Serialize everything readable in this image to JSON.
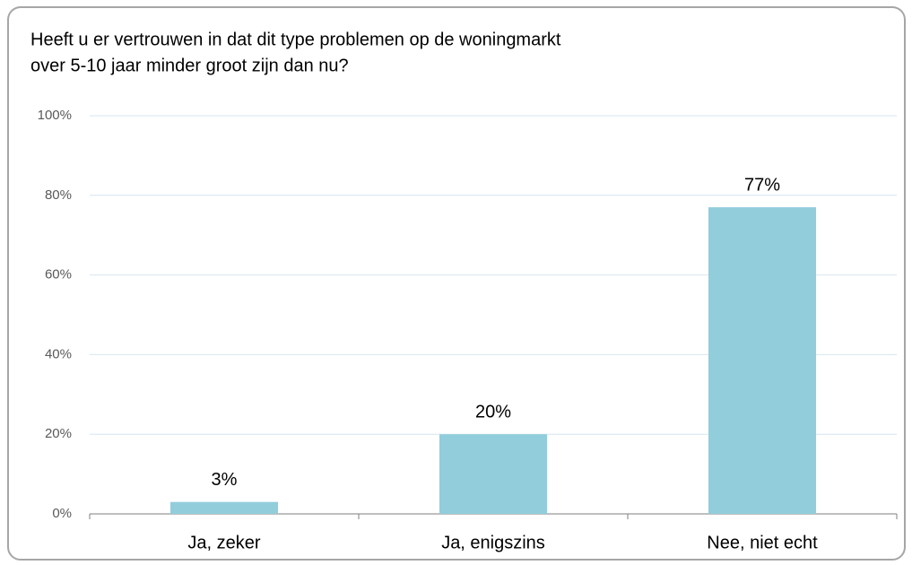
{
  "chart_data": {
    "type": "bar",
    "title": [
      "Heeft u er vertrouwen in dat dit type problemen op de woningmarkt",
      "over 5-10 jaar minder groot zijn dan nu?"
    ],
    "categories": [
      "Ja, zeker",
      "Ja, enigszins",
      "Nee, niet echt"
    ],
    "values": [
      3,
      20,
      77
    ],
    "value_labels": [
      "3%",
      "20%",
      "77%"
    ],
    "color": "#92cddc",
    "ylim": [
      0,
      100
    ],
    "yticks": [
      {
        "value": 0,
        "label": "0%"
      },
      {
        "value": 20,
        "label": "20%"
      },
      {
        "value": 40,
        "label": "40%"
      },
      {
        "value": 60,
        "label": "60%"
      },
      {
        "value": 80,
        "label": "80%"
      },
      {
        "value": 100,
        "label": "100%"
      }
    ],
    "grid": true
  }
}
